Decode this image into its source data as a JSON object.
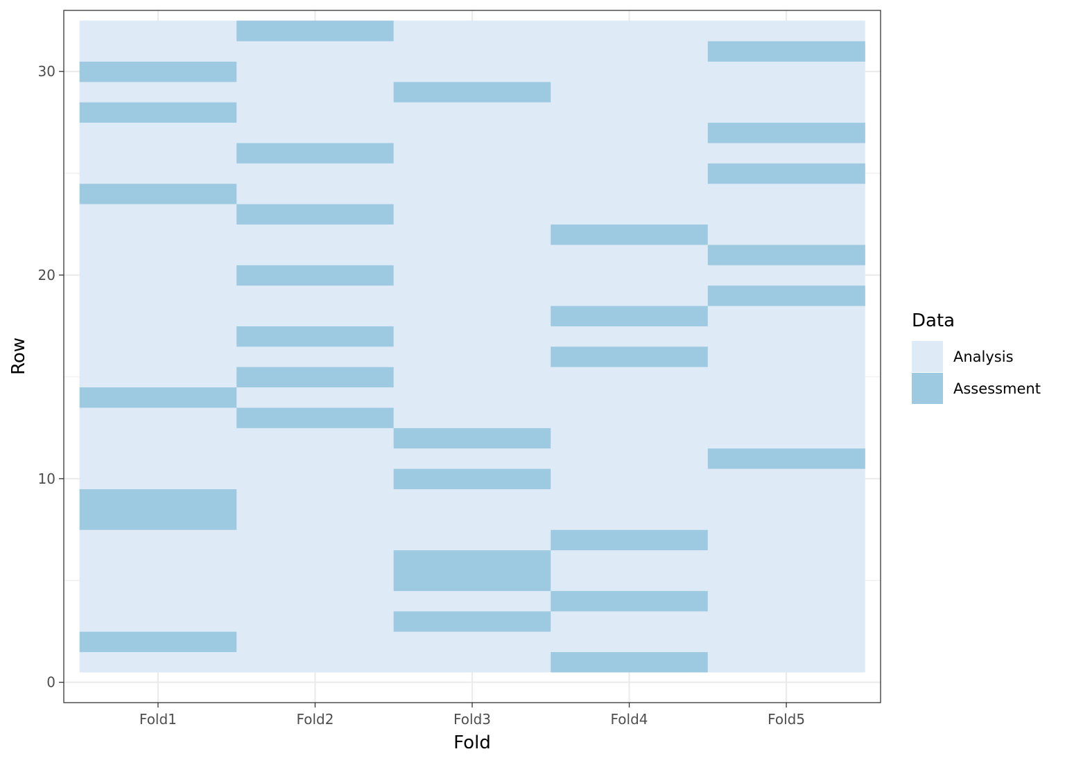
{
  "chart_data": {
    "type": "heatmap",
    "xlabel": "Fold",
    "ylabel": "Row",
    "categories": [
      "Fold1",
      "Fold2",
      "Fold3",
      "Fold4",
      "Fold5"
    ],
    "ylim": [
      -1,
      33
    ],
    "yticks": [
      0,
      10,
      20,
      30
    ],
    "row_range": [
      1,
      32
    ],
    "grid": true,
    "legend": {
      "title": "Data",
      "placement": "right",
      "entries": [
        {
          "name": "Analysis",
          "color": "#deebf7"
        },
        {
          "name": "Assessment",
          "color": "#9ecae1"
        }
      ]
    },
    "assessment_rows": {
      "Fold1": [
        2,
        8,
        9,
        14,
        24,
        28,
        30
      ],
      "Fold2": [
        13,
        15,
        17,
        20,
        23,
        26,
        32
      ],
      "Fold3": [
        3,
        5,
        6,
        10,
        12,
        29
      ],
      "Fold4": [
        1,
        4,
        7,
        16,
        18,
        22
      ],
      "Fold5": [
        11,
        19,
        21,
        25,
        27,
        31
      ]
    }
  }
}
